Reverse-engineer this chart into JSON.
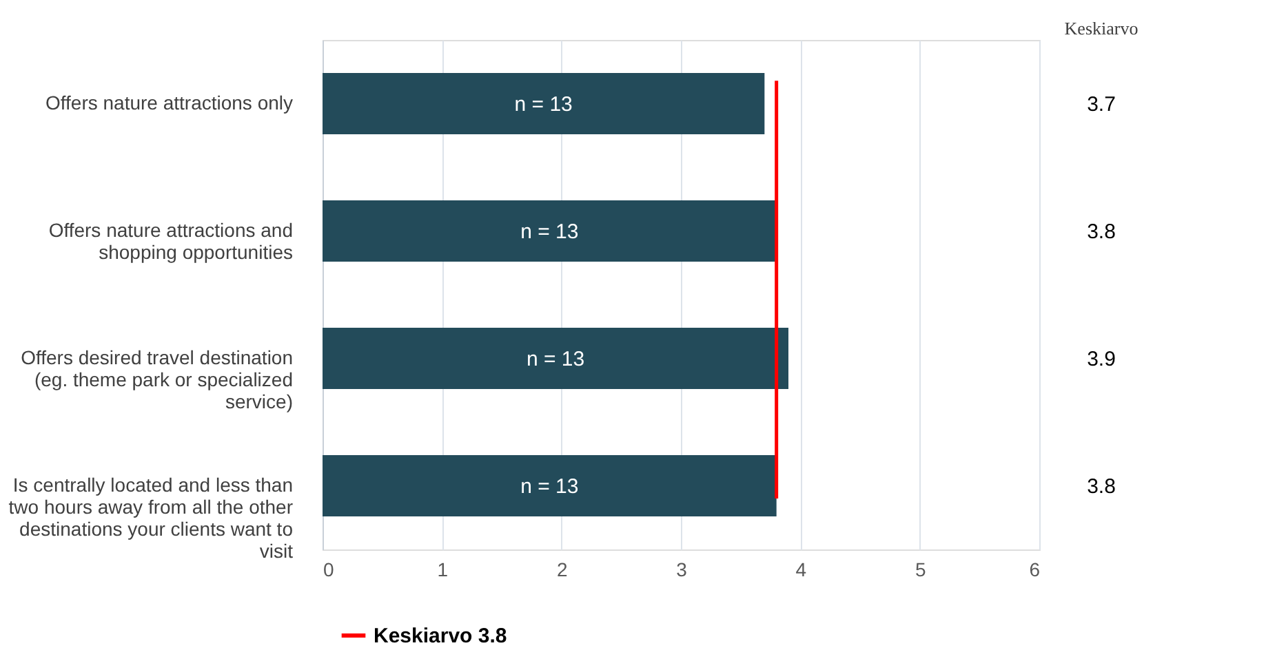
{
  "chart_data": {
    "type": "bar",
    "orientation": "horizontal",
    "categories": [
      "Offers nature attractions only",
      "Offers nature attractions and shopping opportunities",
      "Offers desired travel destination (eg. theme park or specialized service)",
      "Is centrally located and less than two hours away from all the other destinations your clients want to visit"
    ],
    "values": [
      3.7,
      3.8,
      3.9,
      3.8
    ],
    "color": "#234b5a",
    "data_labels": true,
    "xlim": [
      0,
      6
    ],
    "xticks": [
      0,
      1,
      2,
      3,
      4,
      5,
      6
    ],
    "grid": "x",
    "legend": "bottom",
    "ref_lines": [
      {
        "axis": "x",
        "value": 3.8,
        "label": "Keskiarvo 3.8",
        "color": "#ff0000"
      }
    ],
    "annotations": [
      "n = 13",
      "n = 13",
      "n = 13",
      "n = 13",
      "Keskiarvo"
    ]
  }
}
